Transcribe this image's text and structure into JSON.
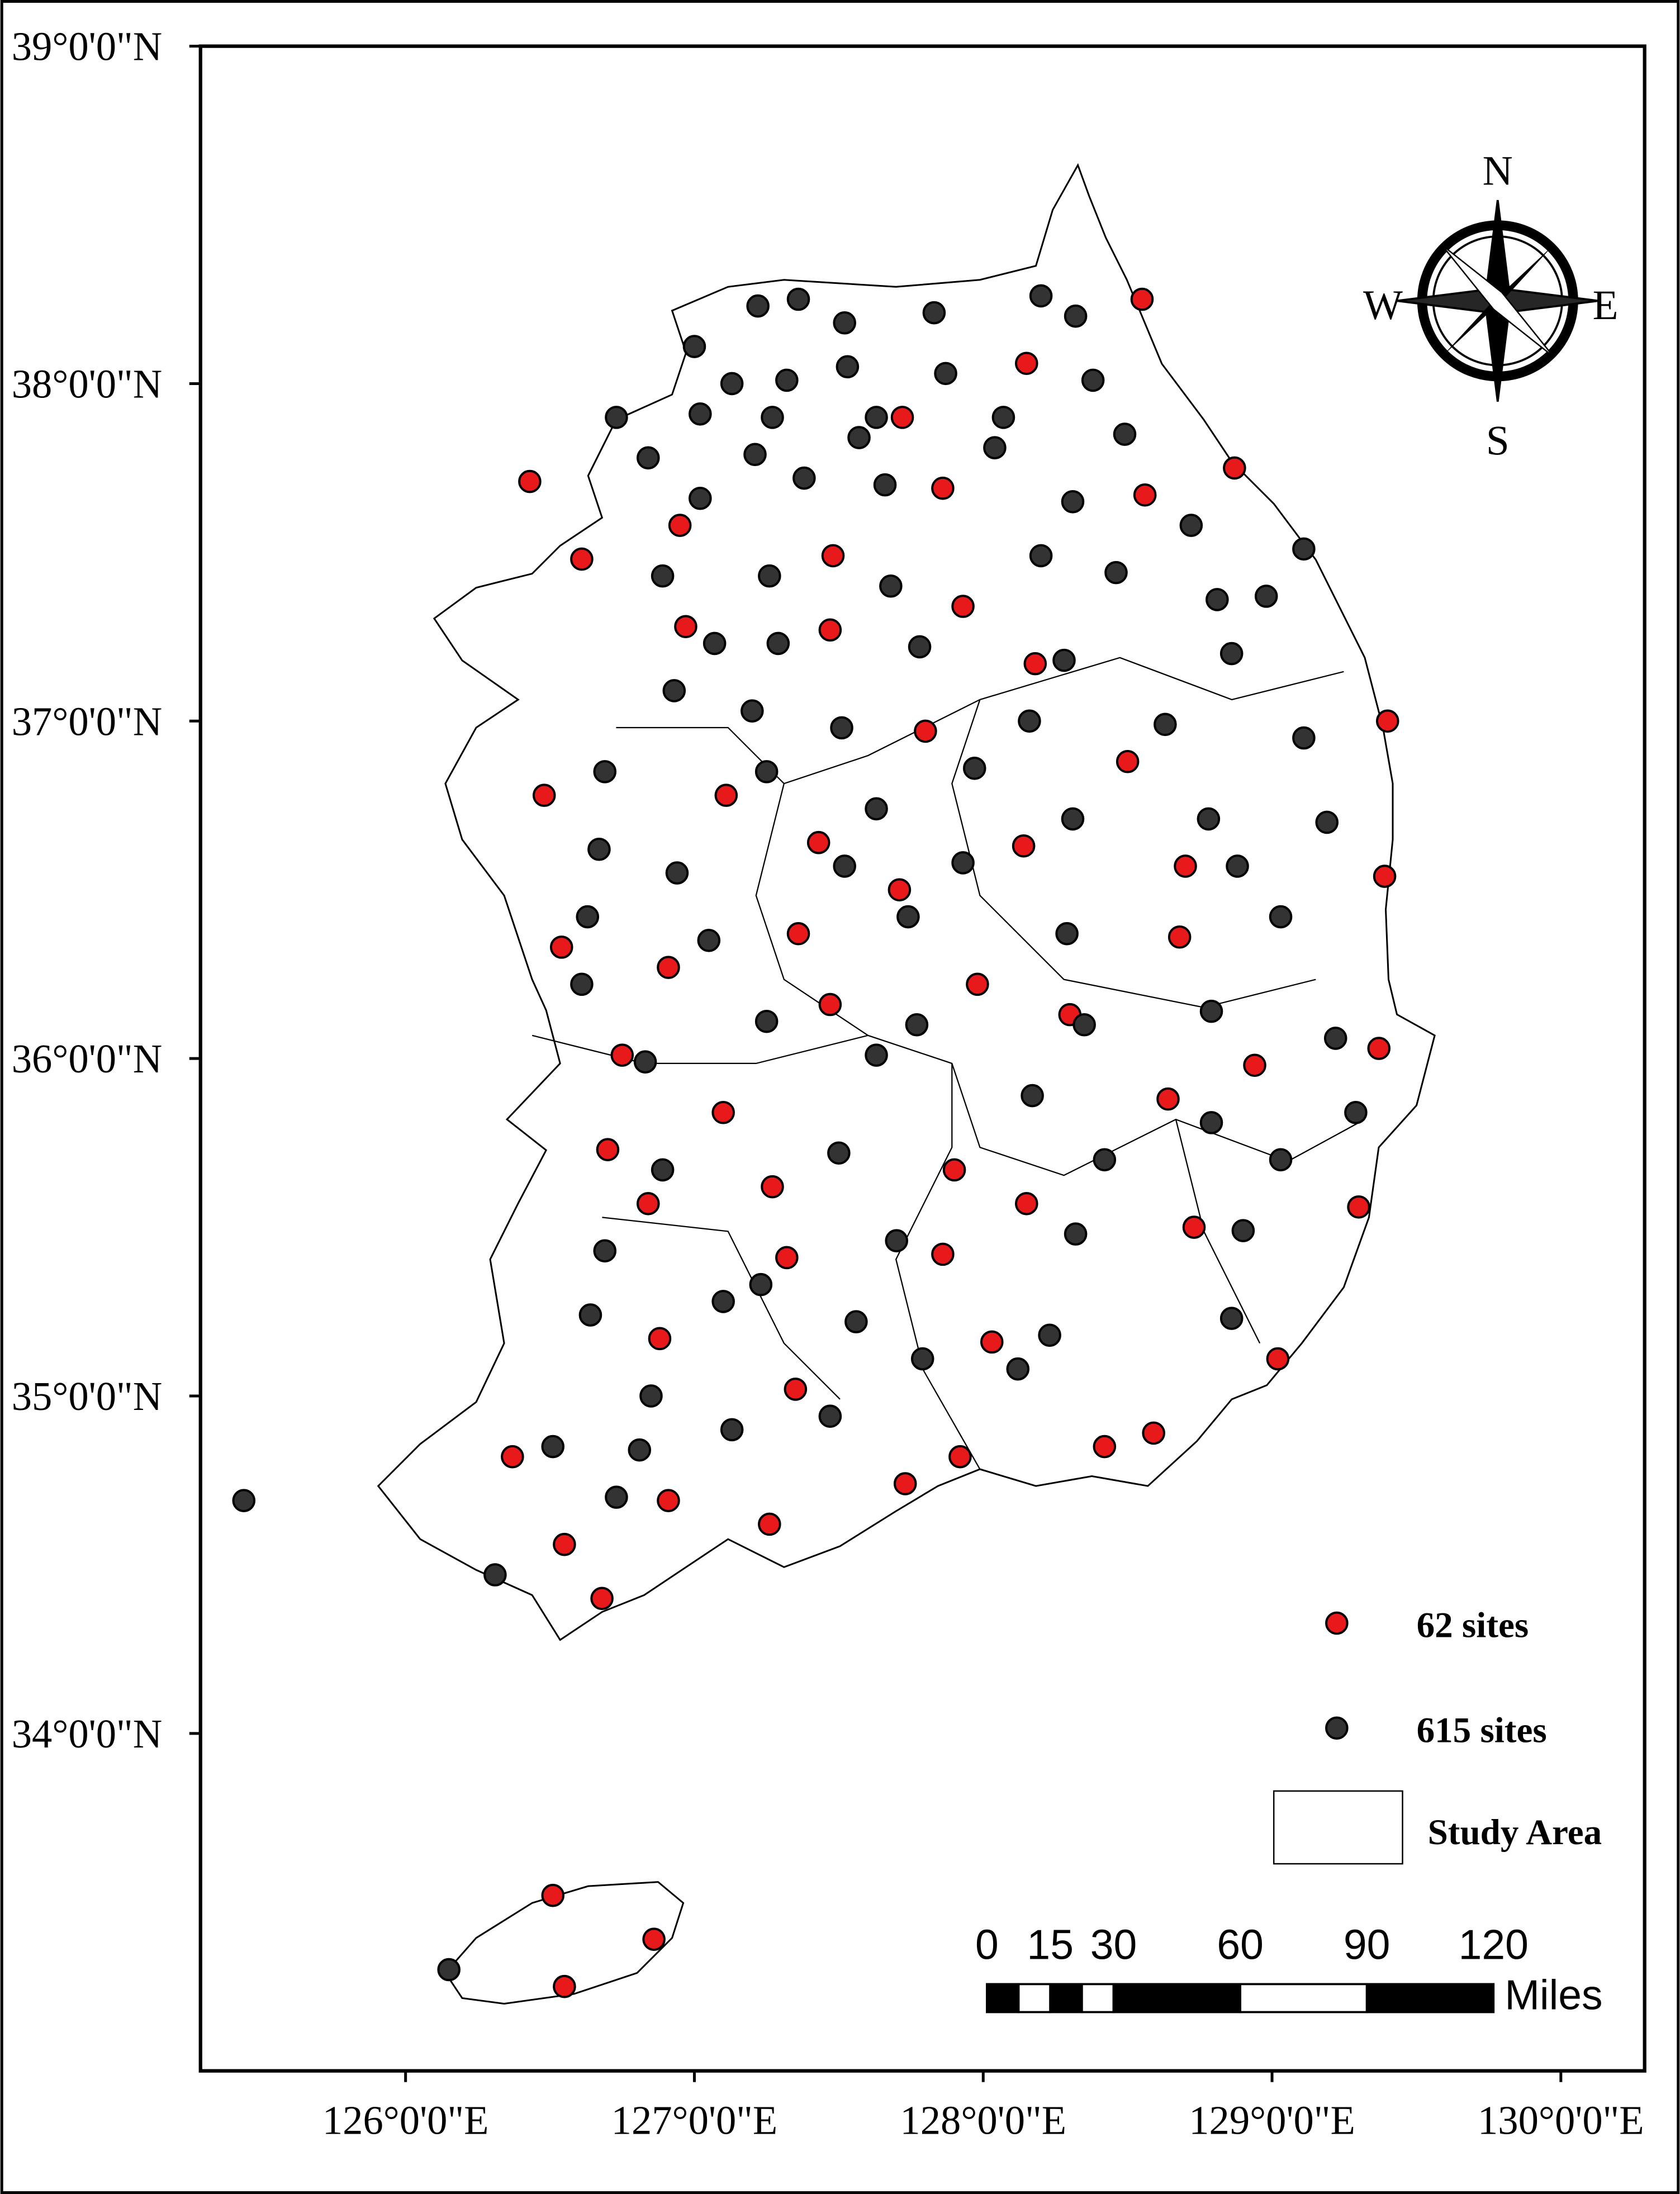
{
  "chart_data": {
    "type": "map",
    "xlim": [
      125.29,
      130.29
    ],
    "ylim": [
      33.0,
      39.0
    ],
    "xticks": [
      {
        "value": 126,
        "label": "126°0'0\"E"
      },
      {
        "value": 127,
        "label": "127°0'0\"E"
      },
      {
        "value": 128,
        "label": "128°0'0\"E"
      },
      {
        "value": 129,
        "label": "129°0'0\"E"
      },
      {
        "value": 130,
        "label": "130°0'0\"E"
      }
    ],
    "yticks": [
      {
        "value": 39,
        "label": "39°0'0\"N"
      },
      {
        "value": 38,
        "label": "38°0'0\"N"
      },
      {
        "value": 37,
        "label": "37°0'0\"N"
      },
      {
        "value": 36,
        "label": "36°0'0\"N"
      },
      {
        "value": 35,
        "label": "35°0'0\"N"
      },
      {
        "value": 34,
        "label": "34°0'0\"N"
      }
    ],
    "series": [
      {
        "name": "62 sites",
        "color": "#e8191b",
        "x": [
          128.55,
          128.15,
          127.72,
          126.43,
          128.87,
          128.56,
          127.86,
          126.61,
          126.95,
          127.48,
          127.93,
          126.97,
          127.47,
          128.18,
          129.4,
          127.8,
          126.48,
          127.11,
          128.5,
          127.43,
          128.14,
          128.7,
          129.39,
          127.71,
          127.36,
          128.68,
          126.54,
          126.91,
          127.98,
          127.47,
          128.3,
          126.75,
          129.37,
          128.94,
          127.1,
          128.64,
          126.7,
          127.9,
          127.27,
          126.84,
          128.15,
          129.3,
          128.73,
          127.32,
          127.86,
          126.88,
          128.03,
          129.02,
          127.35,
          128.59,
          126.37,
          128.42,
          127.92,
          127.73,
          126.91,
          127.26,
          126.55,
          126.68,
          126.51,
          126.86,
          126.55
        ],
        "y": [
          38.25,
          38.06,
          37.9,
          37.71,
          37.75,
          37.67,
          37.69,
          37.48,
          37.58,
          37.49,
          37.34,
          37.28,
          37.27,
          37.17,
          37.0,
          36.97,
          36.78,
          36.78,
          36.88,
          36.64,
          36.63,
          36.57,
          36.54,
          36.5,
          36.37,
          36.36,
          36.33,
          36.27,
          36.22,
          36.16,
          36.13,
          36.01,
          36.03,
          35.98,
          35.84,
          35.88,
          35.73,
          35.67,
          35.62,
          35.57,
          35.57,
          35.56,
          35.5,
          35.41,
          35.42,
          35.17,
          35.16,
          35.11,
          35.02,
          34.89,
          34.82,
          34.85,
          34.82,
          34.74,
          34.69,
          34.62,
          34.56,
          34.4,
          33.52,
          33.39,
          33.25
        ]
      },
      {
        "name": "615 sites",
        "color": "#333333",
        "x": [
          127.22,
          127.36,
          127.52,
          127.83,
          128.2,
          128.32,
          127.0,
          127.13,
          127.32,
          127.53,
          127.87,
          128.38,
          126.73,
          127.02,
          127.27,
          127.63,
          128.07,
          128.49,
          126.84,
          127.21,
          127.57,
          128.04,
          127.02,
          127.38,
          127.66,
          128.31,
          128.72,
          129.11,
          126.89,
          127.26,
          127.68,
          128.2,
          128.46,
          128.81,
          128.98,
          127.07,
          127.29,
          127.78,
          128.28,
          128.86,
          126.93,
          127.2,
          127.51,
          128.16,
          128.63,
          129.11,
          126.69,
          127.25,
          127.63,
          127.97,
          128.31,
          128.78,
          129.19,
          126.67,
          126.94,
          127.52,
          127.93,
          128.88,
          126.63,
          127.05,
          127.74,
          128.29,
          129.03,
          126.61,
          127.25,
          127.77,
          128.35,
          128.79,
          129.22,
          126.83,
          127.63,
          128.17,
          128.79,
          129.29,
          126.89,
          127.5,
          128.42,
          129.03,
          126.69,
          127.23,
          127.7,
          128.32,
          128.9,
          126.64,
          127.1,
          127.56,
          128.23,
          128.86,
          126.51,
          126.81,
          127.13,
          127.47,
          125.44,
          126.31,
          126.15,
          126.73,
          126.85,
          127.79,
          128.12
        ],
        "y": [
          38.23,
          38.25,
          38.18,
          38.21,
          38.26,
          38.2,
          38.11,
          38.0,
          38.01,
          38.05,
          38.03,
          38.01,
          37.9,
          37.91,
          37.9,
          37.9,
          37.9,
          37.85,
          37.78,
          37.79,
          37.84,
          37.81,
          37.66,
          37.72,
          37.7,
          37.65,
          37.58,
          37.51,
          37.43,
          37.43,
          37.4,
          37.49,
          37.44,
          37.36,
          37.37,
          37.23,
          37.23,
          37.22,
          37.18,
          37.2,
          37.09,
          37.03,
          36.98,
          37.0,
          36.99,
          36.95,
          36.85,
          36.85,
          36.74,
          36.86,
          36.71,
          36.71,
          36.7,
          36.62,
          36.55,
          36.57,
          36.58,
          36.57,
          36.42,
          36.35,
          36.42,
          36.37,
          36.42,
          36.22,
          36.11,
          36.1,
          36.1,
          36.14,
          36.06,
          35.99,
          36.01,
          35.89,
          35.81,
          35.84,
          35.67,
          35.72,
          35.7,
          35.7,
          35.43,
          35.33,
          35.46,
          35.48,
          35.49,
          35.24,
          35.28,
          35.22,
          35.18,
          35.23,
          34.85,
          34.84,
          34.9,
          34.94,
          34.69,
          34.47,
          33.3,
          34.7,
          35.0,
          35.11,
          35.08
        ]
      }
    ],
    "study_area_label": "Study Area",
    "compass": {
      "north": "N",
      "south": "S",
      "east": "E",
      "west": "W"
    },
    "scale_bar": {
      "ticks": [
        0,
        15,
        30,
        60,
        90,
        120
      ],
      "unit": "Miles"
    }
  }
}
